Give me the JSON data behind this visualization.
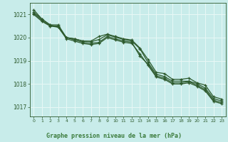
{
  "title": "Graphe pression niveau de la mer (hPa)",
  "background_color": "#c8ecea",
  "plot_bg_color": "#c8ecea",
  "grid_color": "#e8f8f6",
  "line_color": "#2d5a2d",
  "text_color": "#2d5a2d",
  "xlabel_bg_color": "#3a7a3a",
  "xlabel_text_color": "#c8ecea",
  "xlim": [
    -0.5,
    23.5
  ],
  "ylim": [
    1016.6,
    1021.5
  ],
  "yticks": [
    1017,
    1018,
    1019,
    1020,
    1021
  ],
  "xtick_labels": [
    "0",
    "1",
    "2",
    "3",
    "4",
    "5",
    "6",
    "7",
    "8",
    "9",
    "10",
    "11",
    "12",
    "13",
    "14",
    "15",
    "16",
    "17",
    "18",
    "19",
    "20",
    "21",
    "22",
    "23"
  ],
  "lines": [
    [
      1021.2,
      1020.8,
      1020.55,
      1020.55,
      1020.0,
      1019.95,
      1019.85,
      1019.85,
      1020.05,
      1020.15,
      1020.05,
      1019.95,
      1019.9,
      1019.55,
      1019.05,
      1018.5,
      1018.45,
      1018.2,
      1018.2,
      1018.25,
      1018.05,
      1017.95,
      1017.45,
      1017.35
    ],
    [
      1021.1,
      1020.8,
      1020.55,
      1020.45,
      1020.0,
      1019.95,
      1019.85,
      1019.82,
      1019.92,
      1020.12,
      1020.02,
      1019.92,
      1019.85,
      1019.52,
      1018.92,
      1018.42,
      1018.32,
      1018.12,
      1018.12,
      1018.12,
      1018.02,
      1017.82,
      1017.37,
      1017.27
    ],
    [
      1021.05,
      1020.75,
      1020.5,
      1020.5,
      1020.0,
      1019.9,
      1019.8,
      1019.75,
      1019.8,
      1020.05,
      1019.95,
      1019.85,
      1019.8,
      1019.2,
      1018.85,
      1018.35,
      1018.25,
      1018.05,
      1018.05,
      1018.1,
      1017.95,
      1017.75,
      1017.3,
      1017.2
    ],
    [
      1021.0,
      1020.7,
      1020.5,
      1020.45,
      1019.95,
      1019.85,
      1019.75,
      1019.7,
      1019.75,
      1020.0,
      1019.9,
      1019.8,
      1019.75,
      1019.3,
      1018.8,
      1018.3,
      1018.2,
      1018.0,
      1018.0,
      1018.05,
      1017.9,
      1017.7,
      1017.25,
      1017.15
    ]
  ]
}
